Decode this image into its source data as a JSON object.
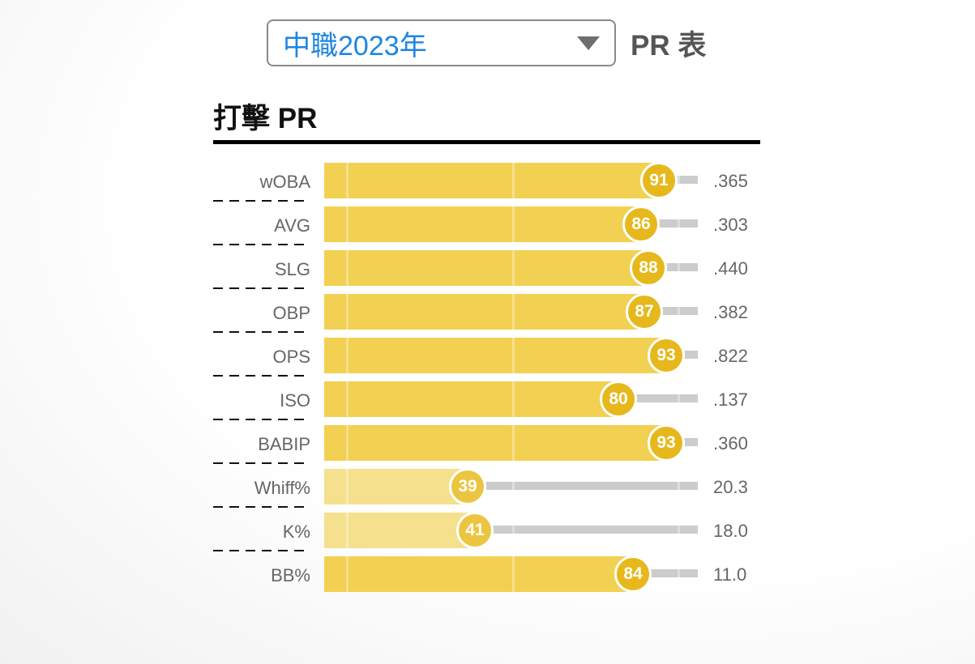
{
  "header": {
    "season_select": {
      "value": "中職2023年",
      "icon": "caret-down-icon"
    },
    "label": "PR 表"
  },
  "section": {
    "title": "打擊 PR"
  },
  "colors": {
    "bar_high": "#f2d052",
    "bar_low": "#f5e08e",
    "badge": "#e6b81c",
    "track": "#cccccc",
    "select_text": "#1f86e0"
  },
  "rows": [
    {
      "label": "wOBA",
      "pr": 91,
      "pr_label": "91",
      "value": ".365"
    },
    {
      "label": "AVG",
      "pr": 86,
      "pr_label": "86",
      "value": ".303"
    },
    {
      "label": "SLG",
      "pr": 88,
      "pr_label": "88",
      "value": ".440"
    },
    {
      "label": "OBP",
      "pr": 87,
      "pr_label": "87",
      "value": ".382"
    },
    {
      "label": "OPS",
      "pr": 93,
      "pr_label": "93",
      "value": ".822"
    },
    {
      "label": "ISO",
      "pr": 80,
      "pr_label": "80",
      "value": ".137"
    },
    {
      "label": "BABIP",
      "pr": 93,
      "pr_label": "93",
      "value": ".360"
    },
    {
      "label": "Whiff%",
      "pr": 39,
      "pr_label": "39",
      "value": "20.3"
    },
    {
      "label": "K%",
      "pr": 41,
      "pr_label": "41",
      "value": "18.0"
    },
    {
      "label": "BB%",
      "pr": 84,
      "pr_label": "84",
      "value": "11.0"
    }
  ],
  "chart_data": {
    "type": "bar",
    "orientation": "horizontal",
    "title": "打擊 PR",
    "categories": [
      "wOBA",
      "AVG",
      "SLG",
      "OBP",
      "OPS",
      "ISO",
      "BABIP",
      "Whiff%",
      "K%",
      "BB%"
    ],
    "series": [
      {
        "name": "PR",
        "values": [
          91,
          86,
          88,
          87,
          93,
          80,
          93,
          39,
          41,
          84
        ]
      }
    ],
    "stat_values": [
      ".365",
      ".303",
      ".440",
      ".382",
      ".822",
      ".137",
      ".360",
      "20.3",
      "18.0",
      "11.0"
    ],
    "xlim": [
      0,
      100
    ],
    "xlabel": "",
    "ylabel": "",
    "grid": true,
    "legend": "none"
  }
}
